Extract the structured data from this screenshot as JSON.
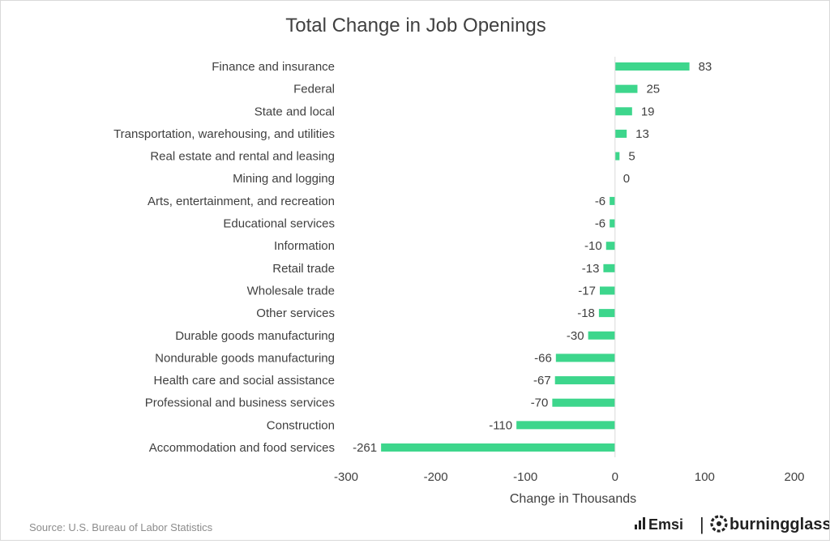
{
  "chart_data": {
    "type": "bar",
    "orientation": "horizontal",
    "title": "Total Change in Job Openings",
    "xlabel": "Change in Thousands",
    "ylabel": "",
    "xlim": [
      -300,
      200
    ],
    "xticks": [
      "-300",
      "-200",
      "-100",
      "0",
      "100",
      "200"
    ],
    "grid": false,
    "bar_color": "#3dd68c",
    "categories": [
      "Finance and insurance",
      "Federal",
      "State and local",
      "Transportation, warehousing, and utilities",
      "Real estate and rental and leasing",
      "Mining and logging",
      "Arts, entertainment, and recreation",
      "Educational services",
      "Information",
      "Retail trade",
      "Wholesale trade",
      "Other services",
      "Durable goods manufacturing",
      "Nondurable goods manufacturing",
      "Health care and social assistance",
      "Professional and business services",
      "Construction",
      "Accommodation and food services"
    ],
    "values": [
      83,
      25,
      19,
      13,
      5,
      0,
      -6,
      -6,
      -10,
      -13,
      -17,
      -18,
      -30,
      -66,
      -67,
      -70,
      -110,
      -261
    ]
  },
  "footer": {
    "source": "Source:  U.S. Bureau of Labor Statistics",
    "logo_left": "Emsi",
    "logo_right": "burningglass",
    "separator": "|"
  },
  "icons": {
    "emsi_logo": "bar-chart-icon",
    "burningglass_logo": "gear-ring-icon"
  }
}
